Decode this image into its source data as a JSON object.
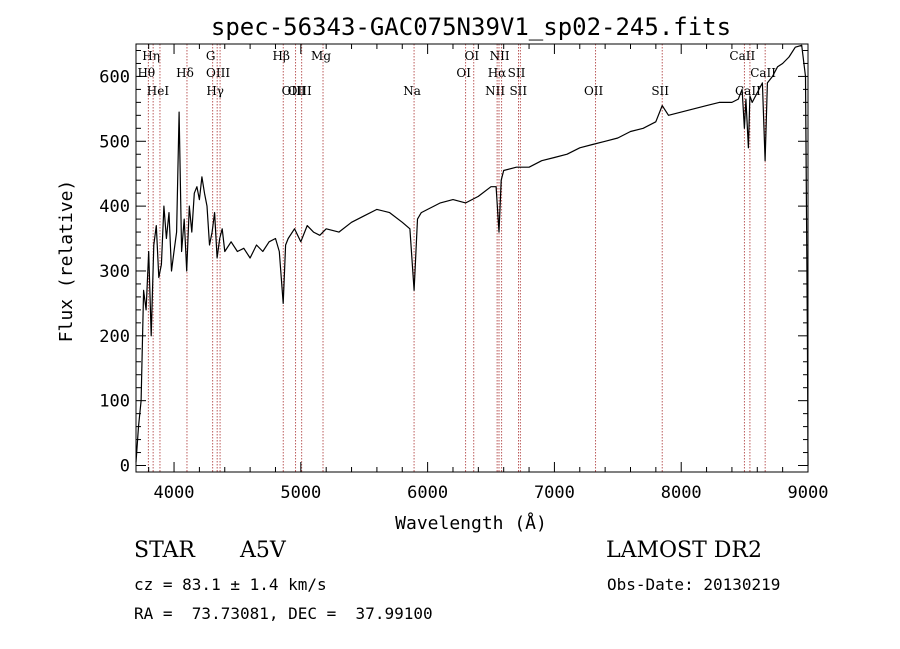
{
  "chart_data": {
    "type": "line",
    "title": "spec-56343-GAC075N39V1_sp02-245.fits",
    "xlabel": "Wavelength (Å)",
    "ylabel": "Flux (relative)",
    "xlim": [
      3700,
      9000
    ],
    "ylim": [
      -10,
      650
    ],
    "x_ticks": [
      4000,
      5000,
      6000,
      7000,
      8000,
      9000
    ],
    "y_ticks": [
      0,
      100,
      200,
      300,
      400,
      500,
      600
    ],
    "grid": false,
    "series": [
      {
        "x": [
          3700,
          3720,
          3740,
          3760,
          3780,
          3800,
          3820,
          3840,
          3860,
          3880,
          3900,
          3920,
          3940,
          3960,
          3980,
          4000,
          4020,
          4040,
          4060,
          4080,
          4100,
          4120,
          4140,
          4160,
          4180,
          4200,
          4220,
          4240,
          4260,
          4280,
          4300,
          4320,
          4340,
          4360,
          4380,
          4400,
          4450,
          4500,
          4550,
          4600,
          4650,
          4700,
          4750,
          4800,
          4830,
          4861,
          4880,
          4900,
          4950,
          5000,
          5050,
          5100,
          5150,
          5200,
          5300,
          5400,
          5500,
          5600,
          5700,
          5800,
          5860,
          5893,
          5920,
          5950,
          6000,
          6050,
          6100,
          6200,
          6300,
          6400,
          6500,
          6540,
          6563,
          6580,
          6600,
          6700,
          6800,
          6900,
          7000,
          7100,
          7200,
          7300,
          7400,
          7500,
          7600,
          7700,
          7800,
          7850,
          7900,
          8000,
          8100,
          8200,
          8300,
          8400,
          8450,
          8480,
          8498,
          8510,
          8530,
          8542,
          8560,
          8600,
          8640,
          8662,
          8680,
          8720,
          8760,
          8800,
          8850,
          8900,
          8950,
          8980,
          8995,
          9000
        ],
        "y": [
          5,
          60,
          100,
          270,
          240,
          330,
          200,
          340,
          370,
          290,
          310,
          400,
          350,
          390,
          300,
          330,
          360,
          545,
          330,
          380,
          300,
          400,
          360,
          420,
          430,
          410,
          445,
          420,
          400,
          340,
          360,
          390,
          320,
          350,
          365,
          330,
          345,
          330,
          335,
          320,
          340,
          330,
          345,
          350,
          330,
          250,
          340,
          350,
          365,
          345,
          370,
          360,
          355,
          365,
          360,
          375,
          385,
          395,
          390,
          375,
          365,
          270,
          380,
          390,
          395,
          400,
          405,
          410,
          405,
          415,
          430,
          430,
          360,
          440,
          455,
          460,
          460,
          470,
          475,
          480,
          490,
          495,
          500,
          505,
          515,
          520,
          530,
          555,
          540,
          545,
          550,
          555,
          560,
          560,
          565,
          580,
          520,
          565,
          490,
          570,
          560,
          575,
          590,
          470,
          590,
          600,
          615,
          620,
          630,
          645,
          648,
          600,
          200,
          0
        ]
      }
    ],
    "line_markers": [
      {
        "label": "Hη",
        "x": 3835
      },
      {
        "label": "Hθ",
        "x": 3797
      },
      {
        "label": "HeI",
        "x": 3889
      },
      {
        "label": "Hδ",
        "x": 4102
      },
      {
        "label": "G",
        "x": 4305
      },
      {
        "label": "OIII",
        "x": 4363
      },
      {
        "label": "Hγ",
        "x": 4340
      },
      {
        "label": "Hβ",
        "x": 4861
      },
      {
        "label": "OIII",
        "x": 4959
      },
      {
        "label": "OIII",
        "x": 5007
      },
      {
        "label": "Mg",
        "x": 5175
      },
      {
        "label": "Na",
        "x": 5893
      },
      {
        "label": "OI",
        "x": 6300
      },
      {
        "label": "OI",
        "x": 6364
      },
      {
        "label": "NII",
        "x": 6548
      },
      {
        "label": "NII",
        "x": 6584
      },
      {
        "label": "Hα",
        "x": 6563
      },
      {
        "label": "SII",
        "x": 6717
      },
      {
        "label": "SII",
        "x": 6731
      },
      {
        "label": "OII",
        "x": 7325
      },
      {
        "label": "SII",
        "x": 7850
      },
      {
        "label": "CaII",
        "x": 8498
      },
      {
        "label": "CaII",
        "x": 8542
      },
      {
        "label": "CaII",
        "x": 8662
      }
    ]
  },
  "info": {
    "object_class": "STAR",
    "subclass": "A5V",
    "survey": "LAMOST DR2",
    "cz": "cz = 83.1 ± 1.4 km/s",
    "obs_date": "Obs-Date: 20130219",
    "coords": "RA =  73.73081, DEC =  37.99100"
  }
}
